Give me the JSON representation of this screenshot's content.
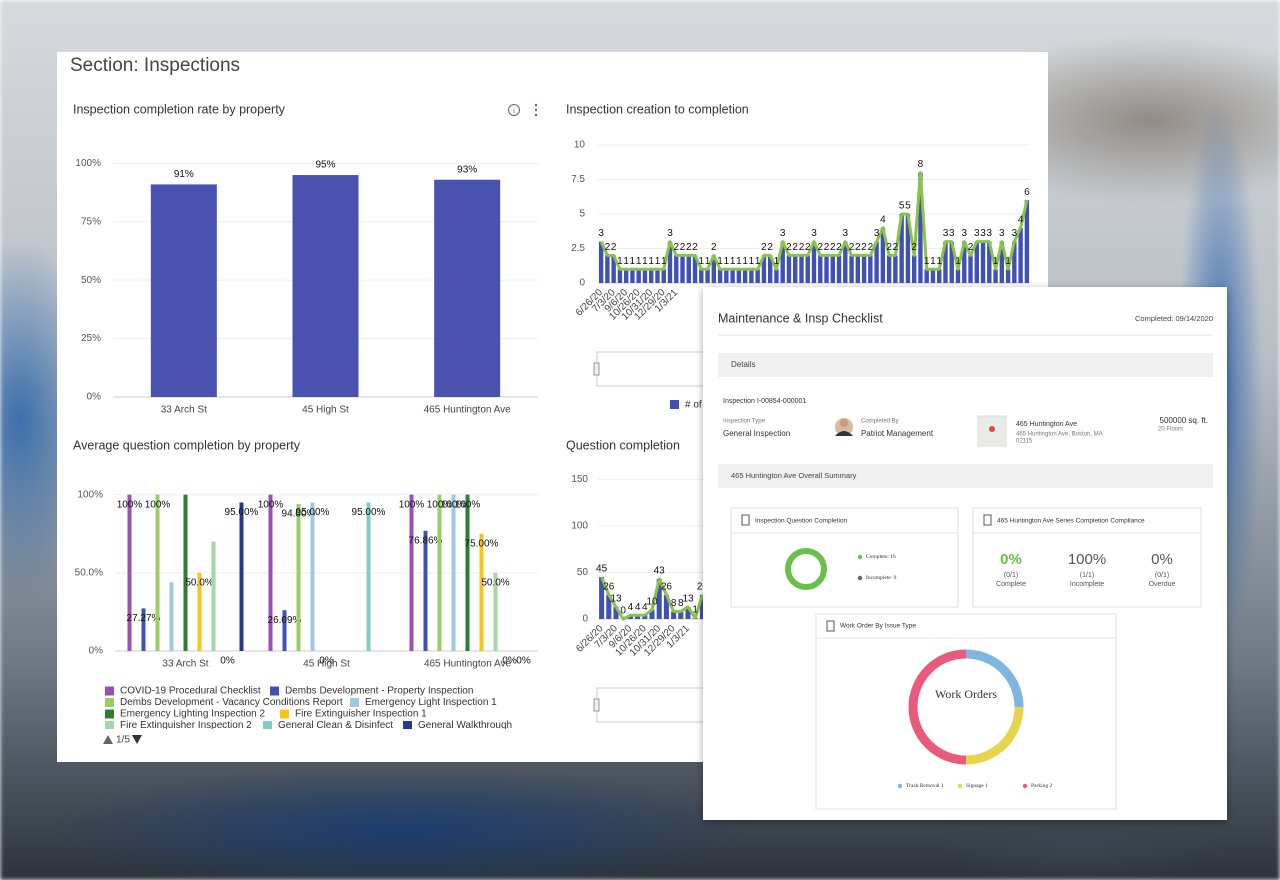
{
  "section_title": "Section: Inspections",
  "pager": "1/5",
  "chart_data": [
    {
      "type": "bar",
      "title": "Inspection completion rate by property",
      "categories": [
        "33 Arch St",
        "45 High St",
        "465 Huntington Ave"
      ],
      "values": [
        91,
        95,
        93
      ],
      "value_labels": [
        "91%",
        "95%",
        "93%"
      ],
      "color": "#4a52b0",
      "ylim": [
        0,
        110
      ],
      "yticks": [
        {
          "value": 0,
          "label": "0%"
        },
        {
          "value": 25,
          "label": "25%"
        },
        {
          "value": 50,
          "label": "50%"
        },
        {
          "value": 75,
          "label": "75%"
        },
        {
          "value": 100,
          "label": "100%"
        }
      ],
      "grid": true
    },
    {
      "type": "combo",
      "title": "Inspection creation to completion",
      "categories": [
        "6/26/20",
        null,
        "7/3/20",
        null,
        "9/6/20",
        null,
        "10/26/20",
        null,
        "10/31/20",
        null,
        "12/29/20",
        null,
        "1/3/21",
        null,
        null,
        null,
        null,
        null,
        null,
        null,
        null,
        null,
        null,
        null,
        null,
        null,
        null,
        null,
        null,
        null,
        null,
        null,
        null,
        null,
        null,
        null,
        null,
        null,
        null,
        null,
        null,
        null,
        null,
        null,
        null,
        null,
        null,
        null,
        null,
        null,
        null,
        null,
        null,
        null,
        null,
        null,
        null,
        null,
        null,
        null,
        null,
        null,
        null,
        null,
        null,
        null,
        null,
        null,
        null
      ],
      "values": [
        3,
        2,
        2,
        1,
        1,
        1,
        1,
        1,
        1,
        1,
        1,
        3,
        2,
        2,
        2,
        2,
        1,
        1,
        2,
        1,
        1,
        1,
        1,
        1,
        1,
        1,
        2,
        2,
        1,
        3,
        2,
        2,
        2,
        2,
        3,
        2,
        2,
        2,
        2,
        3,
        2,
        2,
        2,
        2,
        3,
        4,
        2,
        2,
        5,
        5,
        2,
        8,
        1,
        1,
        1,
        3,
        3,
        1,
        3,
        2,
        3,
        3,
        3,
        1,
        3,
        1,
        3,
        4,
        6
      ],
      "series_name": "# of",
      "bar_color": "#3f51b5",
      "line_color": "#8bc34a",
      "ylim": [
        0,
        10
      ],
      "yticks": [
        0,
        2.5,
        5,
        7.5,
        10
      ],
      "grid": true
    },
    {
      "type": "bar",
      "title": "Average question completion by property",
      "categories": [
        "33 Arch St",
        "45 High St",
        "465 Huntington Ave"
      ],
      "series": [
        {
          "name": "COVID-19 Procedural Checklist",
          "color": "#9c4fb0",
          "values": [
            100,
            100,
            100
          ],
          "value_labels": [
            "100%",
            "100%",
            "100%"
          ]
        },
        {
          "name": "Dembs Development - Property Inspection",
          "color": "#3f51b5",
          "values": [
            27.27,
            26.09,
            76.86
          ],
          "value_labels": [
            "27.27%",
            "26.09%",
            "76.86%"
          ]
        },
        {
          "name": "Dembs Development - Vacancy Conditions Report",
          "color": "#9ccc65",
          "values": [
            100,
            94,
            100
          ],
          "value_labels": [
            "100%",
            "94.00%",
            "100%"
          ]
        },
        {
          "name": "Emergency Light Inspection 1",
          "color": "#9ecae1",
          "values": [
            44,
            95,
            100
          ],
          "value_labels": [
            null,
            "95.00%",
            "100%"
          ]
        },
        {
          "name": "Emergency Lighting Inspection 2",
          "color": "#2e7d32",
          "values": [
            100,
            0,
            100
          ],
          "value_labels": [
            null,
            "0%",
            "100%"
          ]
        },
        {
          "name": "Fire Extinguisher Inspection 1",
          "color": "#f5c518",
          "values": [
            50,
            0,
            75
          ],
          "value_labels": [
            "50.0%",
            null,
            "75.00%"
          ]
        },
        {
          "name": "Fire Extinguisher Inspection 2",
          "color": "#a5d6a7",
          "values": [
            70,
            0,
            50
          ],
          "value_labels": [
            null,
            null,
            "50.0%"
          ]
        },
        {
          "name": "General Clean & Disinfect",
          "color": "#80cbc4",
          "values": [
            0,
            95,
            0
          ],
          "value_labels": [
            "0%",
            "95.00%",
            "0%"
          ]
        },
        {
          "name": "General Walkthrough",
          "color": "#283593",
          "values": [
            95,
            0,
            0
          ],
          "value_labels": [
            "95.00%",
            null,
            "0%"
          ]
        }
      ],
      "ylim": [
        0,
        110
      ],
      "yticks": [
        {
          "value": 0,
          "label": "0%"
        },
        {
          "value": 50,
          "label": "50.0%"
        },
        {
          "value": 100,
          "label": "100%"
        }
      ],
      "grid": true
    },
    {
      "type": "combo",
      "title": "Question completion",
      "categories": [
        "6/26/20",
        null,
        "7/3/20",
        null,
        "9/6/20",
        null,
        "10/26/20",
        null,
        "10/31/20",
        null,
        "12/29/20",
        null,
        "1/3/21",
        null,
        null
      ],
      "values": [
        45,
        26,
        13,
        0,
        4,
        4,
        4,
        10,
        43,
        26,
        8,
        8,
        13,
        1,
        26
      ],
      "bar_color": "#3f51b5",
      "line_color": "#8bc34a",
      "ylim": [
        0,
        160
      ],
      "yticks": [
        0,
        50,
        100,
        150
      ],
      "grid": true
    },
    {
      "type": "pie",
      "title": "Inspection Question Completion",
      "donut": true,
      "categories": [
        "Complete:",
        "Incomplete:"
      ],
      "values": [
        16,
        0
      ],
      "colors": [
        "#6abf4b",
        "#666666"
      ]
    },
    {
      "type": "pie",
      "title": "Work Order By Issue Type",
      "donut": true,
      "center_label": "Work Orders",
      "categories": [
        "Trash Removal",
        "Signage",
        "Parking"
      ],
      "values": [
        1,
        1,
        2
      ],
      "colors": [
        "#7eb6e0",
        "#e6d54c",
        "#ea5a7d"
      ]
    }
  ],
  "checklist": {
    "title": "Maintenance & Insp Checklist",
    "completed": "Completed: 09/14/2020",
    "details_heading": "Details",
    "inspection_id": "Inspection I-00854-000001",
    "type_label": "Inspection Type",
    "type_value": "General Inspection",
    "completed_by_label": "Completed By",
    "completed_by_value": "Patriot Management",
    "property_name": "465 Huntington Ave",
    "address_lines": [
      "465 Huntington Ave, Boston, MA",
      "02115"
    ],
    "area": "500000 sq. ft.",
    "floors": "20 Floors",
    "summary_heading": "465 Huntington Ave Overall Summary",
    "compliance_title": "465 Huntington Ave Series Completion Compliance",
    "compliance": [
      {
        "percent": "0%",
        "fraction": "(0/1)",
        "label": "Complete"
      },
      {
        "percent": "100%",
        "fraction": "(1/1)",
        "label": "Incomplete"
      },
      {
        "percent": "0%",
        "fraction": "(0/1)",
        "label": "Overdue"
      }
    ]
  }
}
